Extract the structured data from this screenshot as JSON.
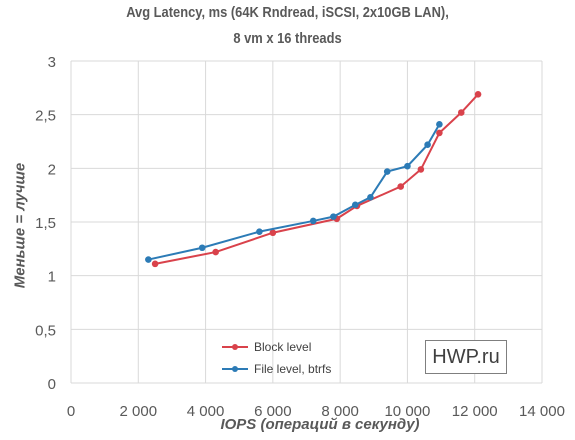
{
  "chart_data": {
    "type": "line",
    "title_line1": "Avg Latency, ms (64K Rndread, iSCSI, 2x10GB LAN),",
    "title_line2": "8 vm x 16 threads",
    "xlabel": "IOPS (операций в секунду)",
    "ylabel": "Меньше = лучше",
    "xlim": [
      0,
      14000
    ],
    "ylim": [
      0,
      3
    ],
    "x_ticks": [
      "0",
      "2 000",
      "4 000",
      "6 000",
      "8 000",
      "10 000",
      "12 000",
      "14 000"
    ],
    "y_ticks": [
      "0",
      "0,5",
      "1",
      "1,5",
      "2",
      "2,5",
      "3"
    ],
    "grid": true,
    "legend_placement": "bottom-center",
    "series": [
      {
        "name": "Block level",
        "color": "#d9424b",
        "x": [
          2500,
          4300,
          6000,
          7900,
          8500,
          9800,
          10400,
          10950,
          11600,
          12100
        ],
        "y": [
          1.11,
          1.22,
          1.4,
          1.53,
          1.65,
          1.83,
          1.99,
          2.33,
          2.52,
          2.69
        ]
      },
      {
        "name": "File level, btrfs",
        "color": "#2c7bb6",
        "x": [
          2300,
          3900,
          5600,
          7200,
          7800,
          8450,
          8900,
          9400,
          10000,
          10600,
          10950
        ],
        "y": [
          1.15,
          1.26,
          1.41,
          1.51,
          1.55,
          1.66,
          1.73,
          1.97,
          2.02,
          2.22,
          2.41
        ]
      }
    ]
  },
  "watermark": "HWP.ru"
}
